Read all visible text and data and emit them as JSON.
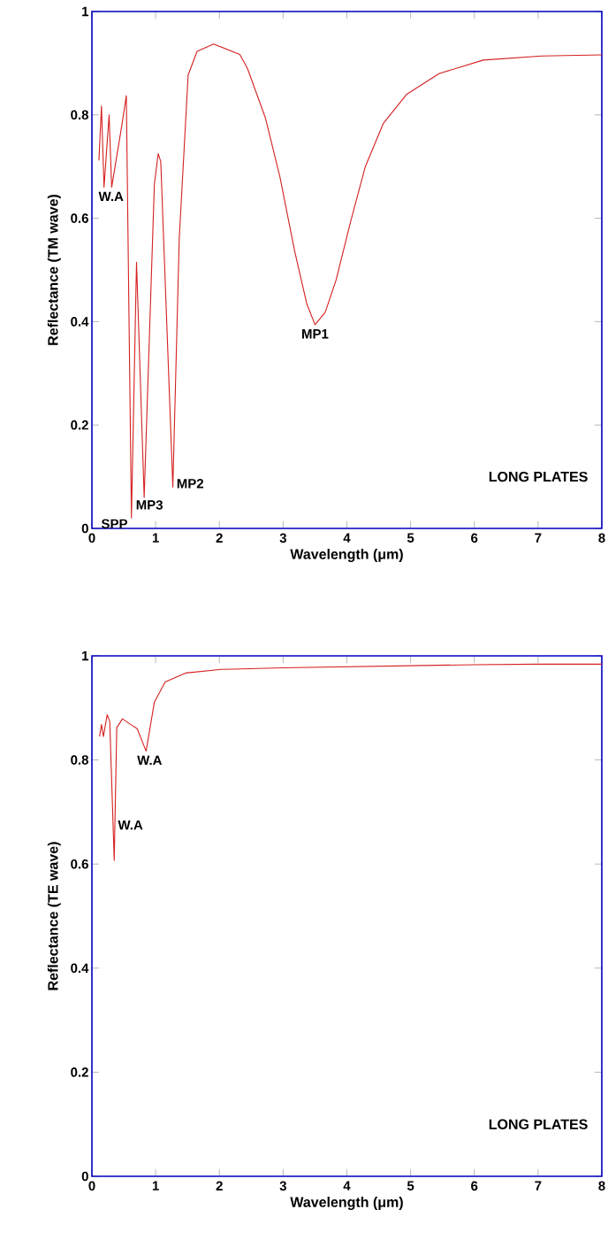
{
  "chart_data": [
    {
      "type": "line",
      "xlabel": "Wavelength (μm)",
      "ylabel": "Reflectance (TM wave)",
      "xlim": [
        0,
        8
      ],
      "ylim": [
        0,
        1
      ],
      "xticks": [
        0,
        1,
        2,
        3,
        4,
        5,
        6,
        7,
        8
      ],
      "yticks": [
        0,
        0.2,
        0.4,
        0.6,
        0.8,
        1
      ],
      "grid": false,
      "annotations": [
        {
          "text": "W.A",
          "x": 0.19,
          "y": 0.66
        },
        {
          "text": "SPP",
          "x": 0.62,
          "y": 0.02
        },
        {
          "text": "MP3",
          "x": 0.82,
          "y": 0.06
        },
        {
          "text": "MP2",
          "x": 1.27,
          "y": 0.08
        },
        {
          "text": "MP1",
          "x": 3.5,
          "y": 0.394
        },
        "LONG PLATES"
      ],
      "series": [
        {
          "color": "#d42020",
          "x": [
            0.11,
            0.15,
            0.19,
            0.27,
            0.31,
            0.47,
            0.54,
            0.62,
            0.7,
            0.82,
            0.98,
            1.04,
            1.08,
            1.27,
            1.37,
            1.51,
            1.65,
            1.91,
            2.32,
            2.44,
            2.72,
            2.95,
            3.18,
            3.37,
            3.5,
            3.66,
            3.83,
            4.06,
            4.29,
            4.57,
            4.94,
            5.45,
            6.14,
            7.06,
            8
          ],
          "values": [
            0.712,
            0.817,
            0.66,
            0.8,
            0.66,
            0.78,
            0.837,
            0.02,
            0.515,
            0.06,
            0.666,
            0.725,
            0.71,
            0.08,
            0.56,
            0.877,
            0.923,
            0.937,
            0.917,
            0.89,
            0.795,
            0.68,
            0.537,
            0.435,
            0.394,
            0.418,
            0.48,
            0.594,
            0.7,
            0.783,
            0.84,
            0.88,
            0.906,
            0.914,
            0.916
          ]
        }
      ]
    },
    {
      "type": "line",
      "xlabel": "Wavelength (μm)",
      "ylabel": "Reflectance (TE wave)",
      "xlim": [
        0,
        8
      ],
      "ylim": [
        0,
        1
      ],
      "xticks": [
        0,
        1,
        2,
        3,
        4,
        5,
        6,
        7,
        8
      ],
      "yticks": [
        0,
        0.2,
        0.4,
        0.6,
        0.8,
        1
      ],
      "grid": false,
      "annotations": [
        {
          "text": "W.A",
          "x": 0.85,
          "y": 0.817
        },
        {
          "text": "W.A",
          "x": 0.35,
          "y": 0.607
        },
        "LONG PLATES"
      ],
      "series": [
        {
          "color": "#d42020",
          "x": [
            0.12,
            0.15,
            0.18,
            0.24,
            0.28,
            0.35,
            0.39,
            0.48,
            0.61,
            0.71,
            0.85,
            0.98,
            1.15,
            1.47,
            2.03,
            3,
            4,
            5,
            6,
            7,
            8
          ],
          "values": [
            0.845,
            0.868,
            0.845,
            0.887,
            0.874,
            0.607,
            0.862,
            0.879,
            0.868,
            0.86,
            0.817,
            0.911,
            0.95,
            0.967,
            0.974,
            0.977,
            0.979,
            0.981,
            0.983,
            0.984,
            0.984
          ]
        }
      ]
    }
  ]
}
